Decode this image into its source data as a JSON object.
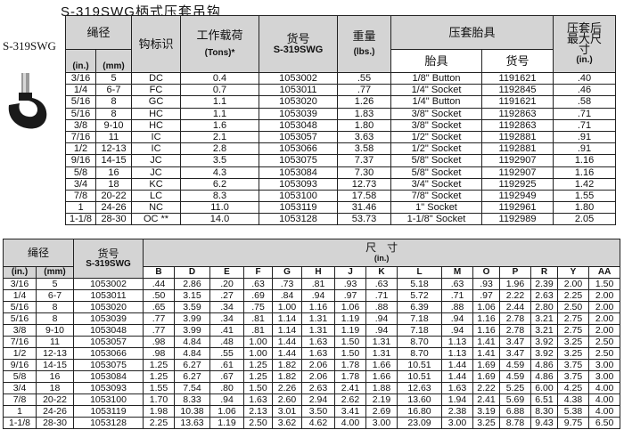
{
  "title": "S-319SWG柄式压套吊钩",
  "product_label": "S-319SWG",
  "table1": {
    "headers": {
      "rope_dia": "绳径",
      "in": "(in.)",
      "mm": "(mm)",
      "hook_id": "钩标识",
      "wll": "工作载荷",
      "tons": "(Tons)*",
      "part_no": "货号",
      "part_model": "S-319SWG",
      "weight": "重量",
      "lbs": "(lbs.)",
      "die": "压套胎具",
      "die_name": "胎具",
      "die_no": "货号",
      "max_size": "压套后最大尺寸",
      "max_size_unit": "(in.)"
    },
    "rows": [
      [
        "3/16",
        "5",
        "DC",
        "0.4",
        "1053002",
        ".55",
        "1/8\" Button",
        "1191621",
        ".40"
      ],
      [
        "1/4",
        "6-7",
        "FC",
        "0.7",
        "1053011",
        ".77",
        "1/4\" Socket",
        "1192845",
        ".46"
      ],
      [
        "5/16",
        "8",
        "GC",
        "1.1",
        "1053020",
        "1.26",
        "1/4\" Button",
        "1191621",
        ".58"
      ],
      [
        "5/16",
        "8",
        "HC",
        "1.1",
        "1053039",
        "1.83",
        "3/8\" Socket",
        "1192863",
        ".71"
      ],
      [
        "3/8",
        "9-10",
        "HC",
        "1.6",
        "1053048",
        "1.80",
        "3/8\" Socket",
        "1192863",
        ".71"
      ],
      [
        "7/16",
        "11",
        "IC",
        "2.1",
        "1053057",
        "3.63",
        "1/2\" Socket",
        "1192881",
        ".91"
      ],
      [
        "1/2",
        "12-13",
        "IC",
        "2.8",
        "1053066",
        "3.58",
        "1/2\" Socket",
        "1192881",
        ".91"
      ],
      [
        "9/16",
        "14-15",
        "JC",
        "3.5",
        "1053075",
        "7.37",
        "5/8\" Socket",
        "1192907",
        "1.16"
      ],
      [
        "5/8",
        "16",
        "JC",
        "4.3",
        "1053084",
        "7.30",
        "5/8\" Socket",
        "1192907",
        "1.16"
      ],
      [
        "3/4",
        "18",
        "KC",
        "6.2",
        "1053093",
        "12.73",
        "3/4\" Socket",
        "1192925",
        "1.42"
      ],
      [
        "7/8",
        "20-22",
        "LC",
        "8.3",
        "1053100",
        "17.58",
        "7/8\" Socket",
        "1192949",
        "1.55"
      ],
      [
        "1",
        "24-26",
        "NC",
        "11.0",
        "1053119",
        "31.46",
        "1\" Socket",
        "1192961",
        "1.80"
      ],
      [
        "1-1/8",
        "28-30",
        "OC **",
        "14.0",
        "1053128",
        "53.73",
        "1-1/8\" Socket",
        "1192989",
        "2.05"
      ]
    ]
  },
  "table2": {
    "headers": {
      "rope_dia": "绳径",
      "in": "(in.)",
      "mm": "(mm)",
      "part_no": "货号",
      "part_model": "S-319SWG",
      "dims": "尺　寸",
      "dims_unit": "(in.)",
      "cols": [
        "B",
        "D",
        "E",
        "F",
        "G",
        "H",
        "J",
        "K",
        "L",
        "M",
        "O",
        "P",
        "R",
        "Y",
        "AA"
      ]
    },
    "rows": [
      [
        "3/16",
        "5",
        "1053002",
        ".44",
        "2.86",
        ".20",
        ".63",
        ".73",
        ".81",
        ".93",
        ".63",
        "5.18",
        ".63",
        ".93",
        "1.96",
        "2.39",
        "2.00",
        "1.50"
      ],
      [
        "1/4",
        "6-7",
        "1053011",
        ".50",
        "3.15",
        ".27",
        ".69",
        ".84",
        ".94",
        ".97",
        ".71",
        "5.72",
        ".71",
        ".97",
        "2.22",
        "2.63",
        "2.25",
        "2.00"
      ],
      [
        "5/16",
        "8",
        "1053020",
        ".65",
        "3.59",
        ".34",
        ".75",
        "1.00",
        "1.16",
        "1.06",
        ".88",
        "6.39",
        ".88",
        "1.06",
        "2.44",
        "2.80",
        "2.50",
        "2.00"
      ],
      [
        "5/16",
        "8",
        "1053039",
        ".77",
        "3.99",
        ".34",
        ".81",
        "1.14",
        "1.31",
        "1.19",
        ".94",
        "7.18",
        ".94",
        "1.16",
        "2.78",
        "3.21",
        "2.75",
        "2.00"
      ],
      [
        "3/8",
        "9-10",
        "1053048",
        ".77",
        "3.99",
        ".41",
        ".81",
        "1.14",
        "1.31",
        "1.19",
        ".94",
        "7.18",
        ".94",
        "1.16",
        "2.78",
        "3.21",
        "2.75",
        "2.00"
      ],
      [
        "7/16",
        "11",
        "1053057",
        ".98",
        "4.84",
        ".48",
        "1.00",
        "1.44",
        "1.63",
        "1.50",
        "1.31",
        "8.70",
        "1.13",
        "1.41",
        "3.47",
        "3.92",
        "3.25",
        "2.50"
      ],
      [
        "1/2",
        "12-13",
        "1053066",
        ".98",
        "4.84",
        ".55",
        "1.00",
        "1.44",
        "1.63",
        "1.50",
        "1.31",
        "8.70",
        "1.13",
        "1.41",
        "3.47",
        "3.92",
        "3.25",
        "2.50"
      ],
      [
        "9/16",
        "14-15",
        "1053075",
        "1.25",
        "6.27",
        ".61",
        "1.25",
        "1.82",
        "2.06",
        "1.78",
        "1.66",
        "10.51",
        "1.44",
        "1.69",
        "4.59",
        "4.86",
        "3.75",
        "3.00"
      ],
      [
        "5/8",
        "16",
        "1053084",
        "1.25",
        "6.27",
        ".67",
        "1.25",
        "1.82",
        "2.06",
        "1.78",
        "1.66",
        "10.51",
        "1.44",
        "1.69",
        "4.59",
        "4.86",
        "3.75",
        "3.00"
      ],
      [
        "3/4",
        "18",
        "1053093",
        "1.55",
        "7.54",
        ".80",
        "1.50",
        "2.26",
        "2.63",
        "2.41",
        "1.88",
        "12.63",
        "1.63",
        "2.22",
        "5.25",
        "6.00",
        "4.25",
        "4.00"
      ],
      [
        "7/8",
        "20-22",
        "1053100",
        "1.70",
        "8.33",
        ".94",
        "1.63",
        "2.60",
        "2.94",
        "2.62",
        "2.19",
        "13.60",
        "1.94",
        "2.41",
        "5.69",
        "6.51",
        "4.38",
        "4.00"
      ],
      [
        "1",
        "24-26",
        "1053119",
        "1.98",
        "10.38",
        "1.06",
        "2.13",
        "3.01",
        "3.50",
        "3.41",
        "2.69",
        "16.80",
        "2.38",
        "3.19",
        "6.88",
        "8.30",
        "5.38",
        "4.00"
      ],
      [
        "1-1/8",
        "28-30",
        "1053128",
        "2.25",
        "13.63",
        "1.19",
        "2.50",
        "3.62",
        "4.62",
        "4.00",
        "3.00",
        "23.09",
        "3.00",
        "3.25",
        "8.78",
        "9.43",
        "9.75",
        "6.50"
      ]
    ]
  }
}
